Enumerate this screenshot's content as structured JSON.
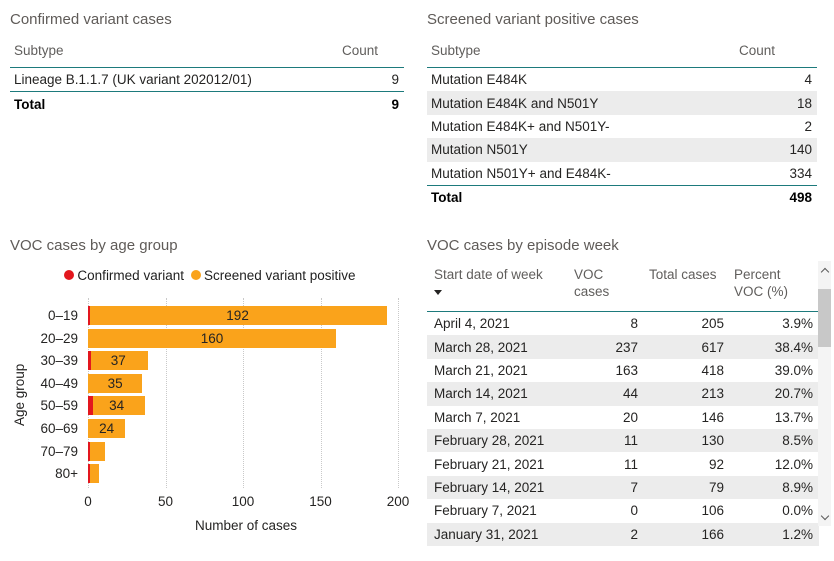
{
  "theme": {
    "divider_teal": "#1d7a7c",
    "band_gray": "#ececec",
    "header_text": "#605e5c",
    "body_text": "#252423",
    "confirmed_red": "#e3171e",
    "screened_orange": "#faa31b"
  },
  "chart_data": [
    {
      "type": "table",
      "title": "Confirmed variant cases",
      "columns": [
        "Subtype",
        "Count"
      ],
      "rows": [
        [
          "Lineage B.1.1.7 (UK variant 202012/01)",
          9
        ]
      ],
      "total": [
        "Total",
        9
      ]
    },
    {
      "type": "table",
      "title": "Screened variant positive cases",
      "columns": [
        "Subtype",
        "Count"
      ],
      "rows": [
        [
          "Mutation E484K",
          4
        ],
        [
          "Mutation E484K and N501Y",
          18
        ],
        [
          "Mutation E484K+ and N501Y-",
          2
        ],
        [
          "Mutation N501Y",
          140
        ],
        [
          "Mutation N501Y+ and E484K-",
          334
        ]
      ],
      "total": [
        "Total",
        498
      ]
    },
    {
      "type": "bar",
      "orientation": "horizontal",
      "stacked": true,
      "title": "VOC cases by age group",
      "categories": [
        "0–19",
        "20–29",
        "30–39",
        "40–49",
        "50–59",
        "60–69",
        "70–79",
        "80+"
      ],
      "series": [
        {
          "name": "Confirmed variant",
          "color": "#e3171e",
          "values": [
            1,
            0,
            2,
            0,
            3,
            0,
            1,
            1
          ]
        },
        {
          "name": "Screened variant positive",
          "color": "#faa31b",
          "values": [
            192,
            160,
            37,
            35,
            34,
            24,
            10,
            6
          ]
        }
      ],
      "bar_labels": [
        "192",
        "160",
        "37",
        "35",
        "34",
        "24",
        "",
        ""
      ],
      "xlabel": "Number of cases",
      "ylabel": "Age group",
      "xlim": [
        0,
        200
      ],
      "xticks": [
        0,
        50,
        100,
        150,
        200
      ],
      "grid": "vertical-dotted",
      "legend_position": "top"
    },
    {
      "type": "table",
      "title": "VOC cases by episode week",
      "columns": [
        "Start date of week",
        "VOC cases",
        "Total cases",
        "Percent VOC (%)"
      ],
      "sort": {
        "column": "Start date of week",
        "direction": "descending"
      },
      "rows": [
        [
          "April 4, 2021",
          8,
          205,
          "3.9%"
        ],
        [
          "March 28, 2021",
          237,
          617,
          "38.4%"
        ],
        [
          "March 21, 2021",
          163,
          418,
          "39.0%"
        ],
        [
          "March 14, 2021",
          44,
          213,
          "20.7%"
        ],
        [
          "March 7, 2021",
          20,
          146,
          "13.7%"
        ],
        [
          "February 28, 2021",
          11,
          130,
          "8.5%"
        ],
        [
          "February 21, 2021",
          11,
          92,
          "12.0%"
        ],
        [
          "February 14, 2021",
          7,
          79,
          "8.9%"
        ],
        [
          "February 7, 2021",
          0,
          106,
          "0.0%"
        ],
        [
          "January 31, 2021",
          2,
          166,
          "1.2%"
        ]
      ]
    }
  ]
}
